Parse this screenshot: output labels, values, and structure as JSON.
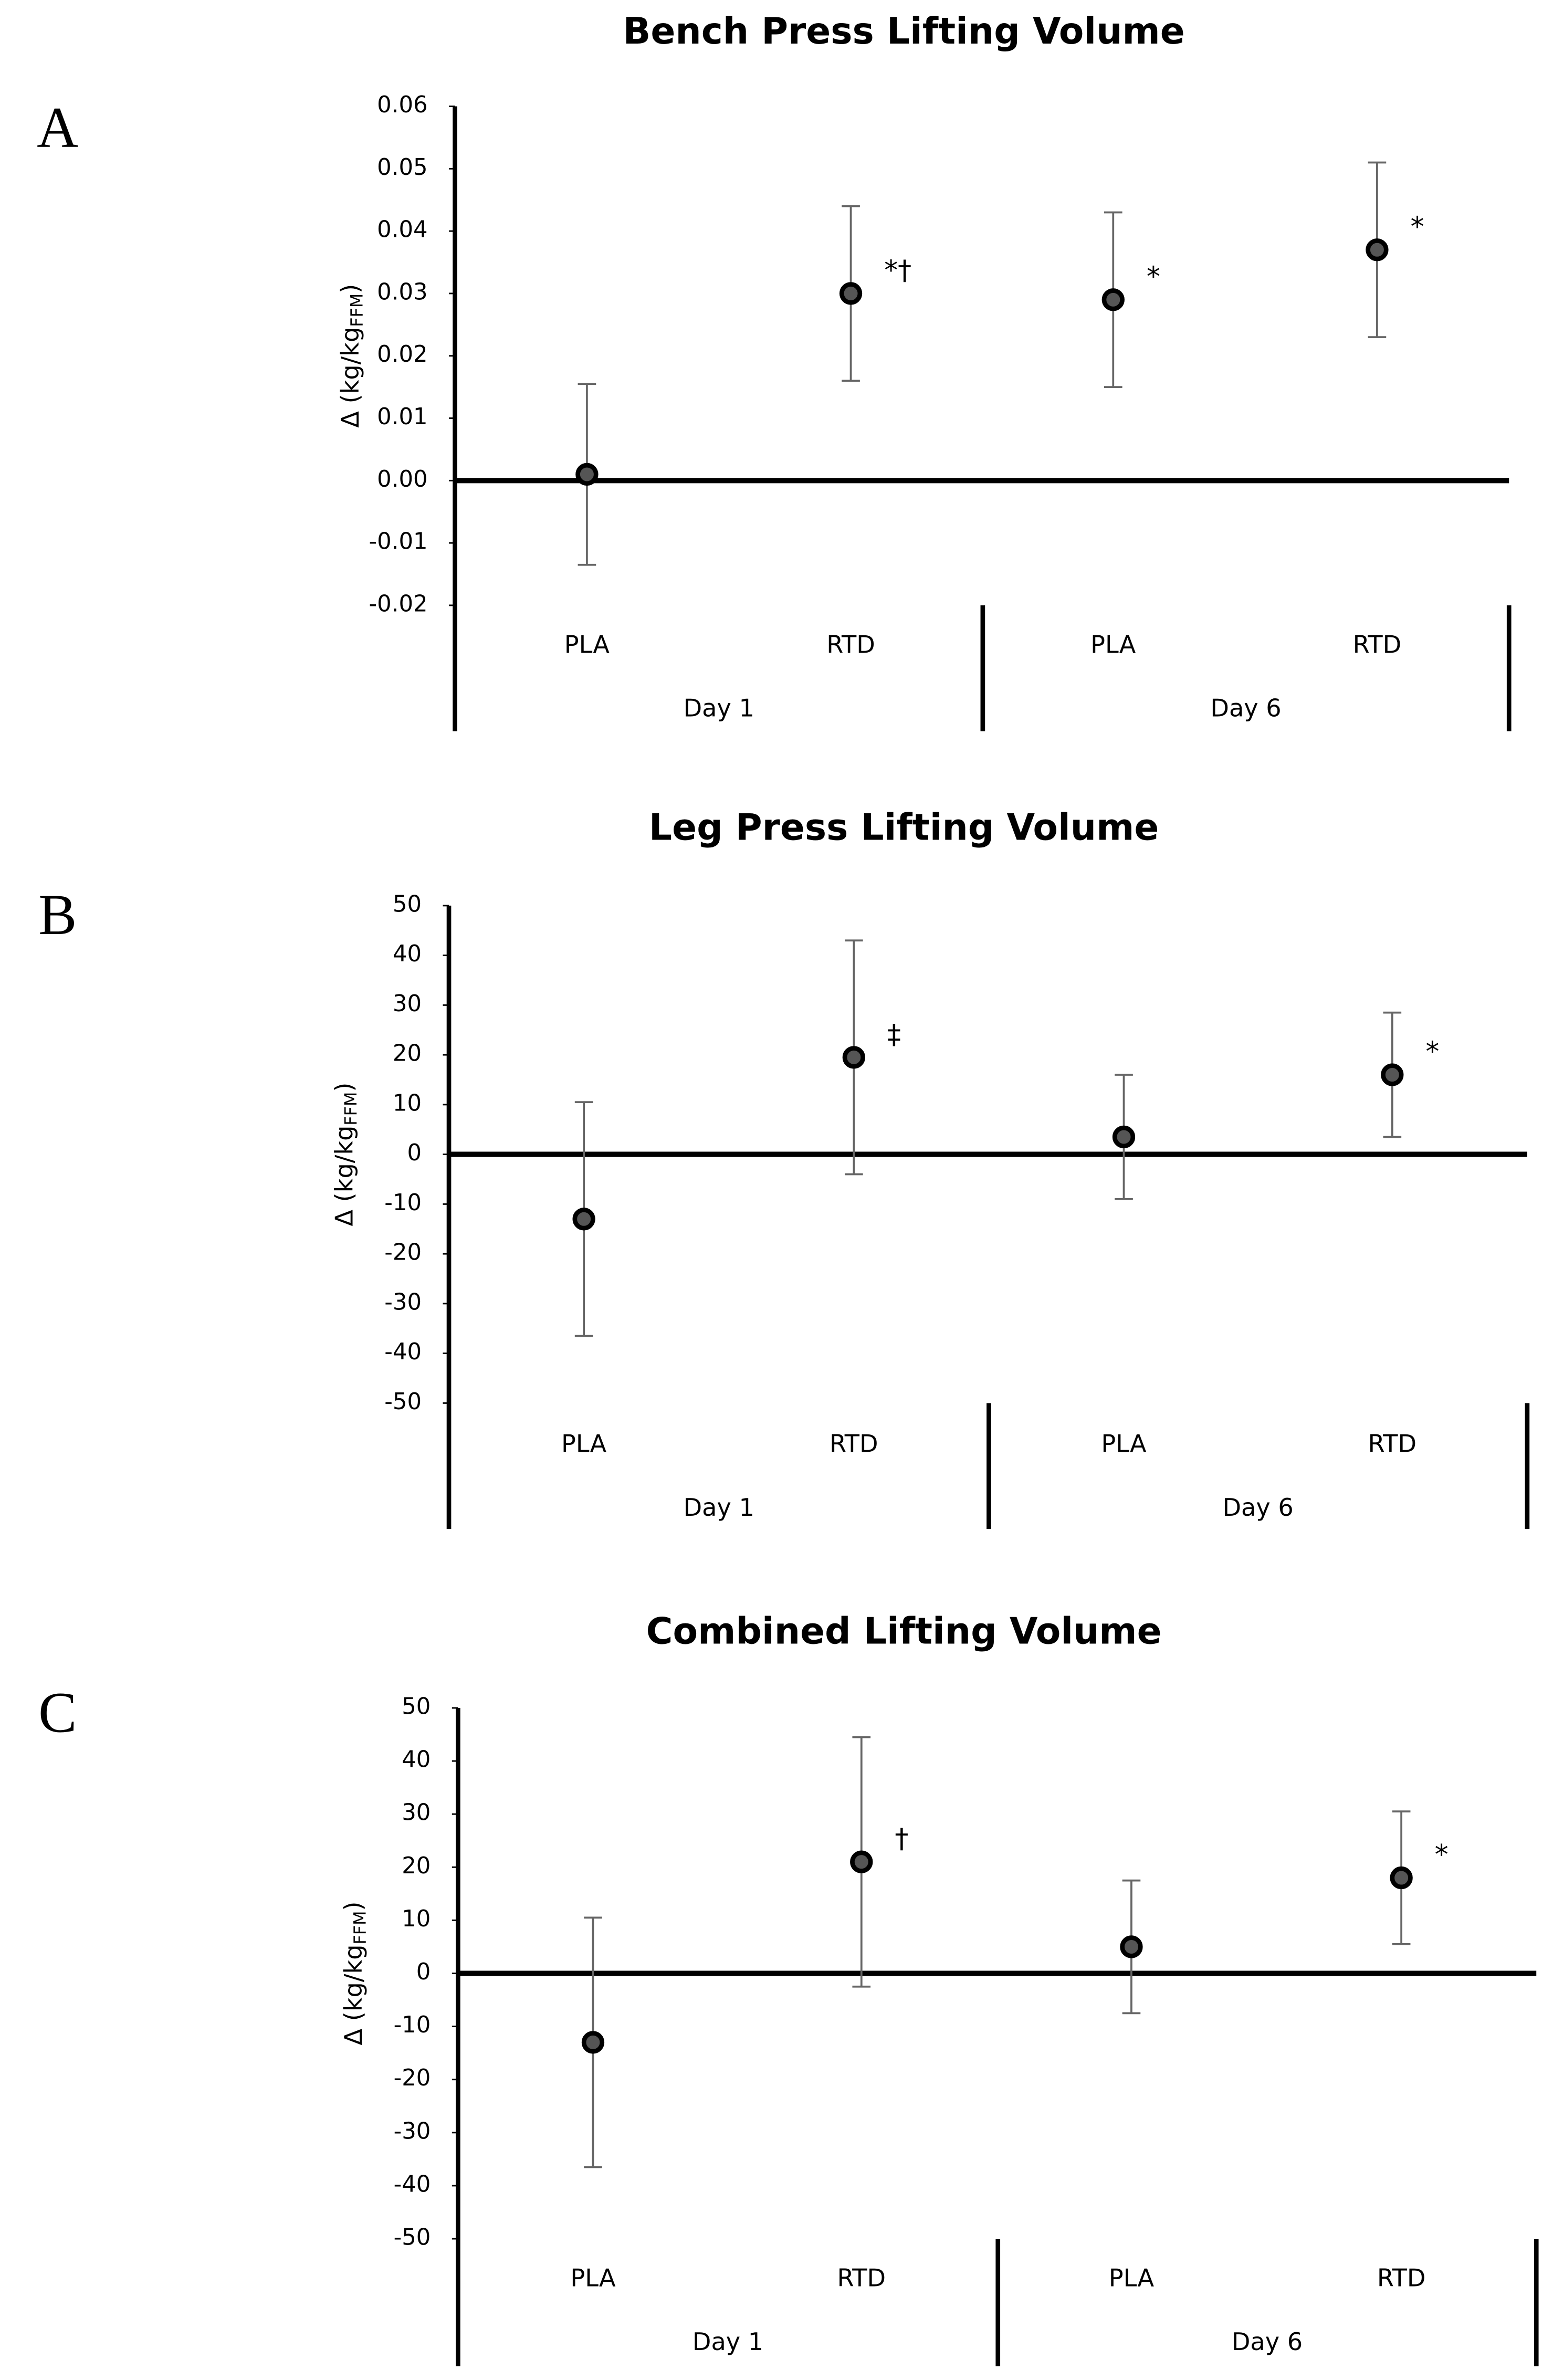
{
  "chart_data": [
    {
      "type": "scatter",
      "panel": "A",
      "title": "Bench Press Lifting Volume",
      "y_label_parts": [
        "Δ (kg/kg",
        "FFM",
        ")"
      ],
      "categories": [
        "PLA",
        "RTD",
        "PLA",
        "RTD"
      ],
      "groups": [
        "Day 1",
        "Day 6"
      ],
      "values": [
        0.001,
        0.03,
        0.029,
        0.037
      ],
      "errors": [
        0.0145,
        0.014,
        0.014,
        0.014
      ],
      "annotations": [
        null,
        "*†",
        "*",
        "*"
      ],
      "ylim": [
        -0.02,
        0.06
      ],
      "yticks": [
        -0.02,
        -0.01,
        {
          "value": 0,
          "label": "0.00"
        },
        0.01,
        0.02,
        0.03,
        0.04,
        0.05,
        0.06
      ],
      "color": "#555555"
    },
    {
      "type": "scatter",
      "panel": "B",
      "title": "Leg Press Lifting Volume",
      "y_label_parts": [
        "Δ (kg/kg",
        "FFM",
        ")"
      ],
      "categories": [
        "PLA",
        "RTD",
        "PLA",
        "RTD"
      ],
      "groups": [
        "Day 1",
        "Day 6"
      ],
      "values": [
        -13,
        19.5,
        3.5,
        16
      ],
      "errors": [
        23.5,
        23.5,
        12.5,
        12.5
      ],
      "annotations": [
        null,
        "‡",
        null,
        "*"
      ],
      "ylim": [
        -50,
        50
      ],
      "yticks": [
        -50,
        -40,
        -30,
        -20,
        -10,
        0,
        10,
        20,
        30,
        40,
        50
      ],
      "color": "#555555"
    },
    {
      "type": "scatter",
      "panel": "C",
      "title": "Combined Lifting Volume",
      "y_label_parts": [
        "Δ (kg/kg",
        "FFM",
        ")"
      ],
      "categories": [
        "PLA",
        "RTD",
        "PLA",
        "RTD"
      ],
      "groups": [
        "Day 1",
        "Day 6"
      ],
      "values": [
        -13,
        21,
        5,
        18
      ],
      "errors": [
        23.5,
        23.5,
        12.5,
        12.5
      ],
      "annotations": [
        null,
        "†",
        null,
        "*"
      ],
      "ylim": [
        -50,
        50
      ],
      "yticks": [
        -50,
        -40,
        -30,
        -20,
        -10,
        0,
        10,
        20,
        30,
        40,
        50
      ],
      "color": "#555555"
    }
  ]
}
